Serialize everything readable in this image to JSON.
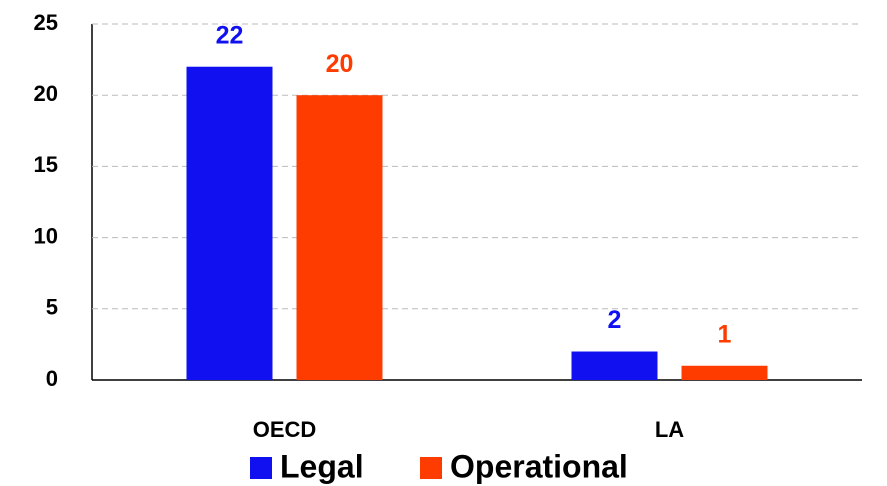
{
  "chart_data": {
    "type": "bar",
    "categories": [
      "OECD",
      "LA"
    ],
    "series": [
      {
        "name": "Legal",
        "color": "#1010f0",
        "values": [
          22,
          2
        ]
      },
      {
        "name": "Operational",
        "color": "#ff3c00",
        "values": [
          20,
          1
        ]
      }
    ],
    "ylim": [
      0,
      25
    ],
    "yticks": [
      0,
      5,
      10,
      15,
      20,
      25
    ],
    "grid": true,
    "legend": "bottom"
  }
}
